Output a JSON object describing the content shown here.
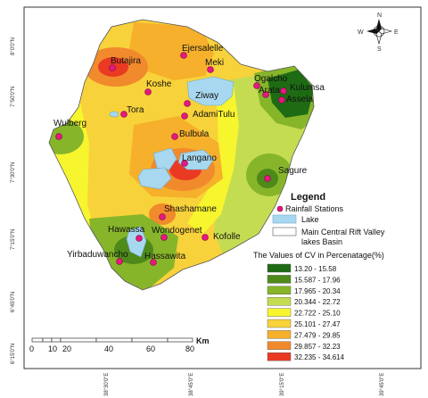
{
  "compass": {
    "n": "N",
    "s": "S",
    "e": "E",
    "w": "W"
  },
  "lat_labels": [
    "8°0'0\"N",
    "7°50'0\"N",
    "7°30'0\"N",
    "7°15'0\"N",
    "6°45'0\"N",
    "6°15'0\"N"
  ],
  "lon_labels": [
    "38°30'0\"E",
    "38°45'0\"E",
    "39°15'0\"E",
    "39°45'0\"E"
  ],
  "stations": [
    "Ejersalelle",
    "Meki",
    "Butajira",
    "Koshe",
    "Ziway",
    "Ogalcho",
    "Arata",
    "Kulumsa",
    "Assela",
    "Tora",
    "AdamiTulu",
    "Wulberg",
    "Bulbula",
    "Langano",
    "Sagure",
    "Shashamane",
    "Wondogenet",
    "Kofolle",
    "Hawassa",
    "Yirbaduwancho",
    "Hassawita"
  ],
  "legend": {
    "title": "Legend",
    "stations_label": "Rainfall Stations",
    "lakes_label": "Lake",
    "boundary_label": "Main Central Rift Valley",
    "boundary_label2": "lakes Basin",
    "cv_title": "The Values of CV in Percenatage(%)",
    "classes": [
      {
        "range": "13.20 - 15.58",
        "color": "#1e6b14"
      },
      {
        "range": "15.587 - 17.96",
        "color": "#4e8a1a"
      },
      {
        "range": "17.965 - 20.34",
        "color": "#86b52a"
      },
      {
        "range": "20.344 - 22.72",
        "color": "#c4dc52"
      },
      {
        "range": "22.722 - 25.10",
        "color": "#f7f52e"
      },
      {
        "range": "25.101 - 27.47",
        "color": "#f8d23a"
      },
      {
        "range": "27.479 - 29.85",
        "color": "#f6b02c"
      },
      {
        "range": "29.857 - 32.23",
        "color": "#f18a2c"
      },
      {
        "range": "32.235 - 34.614",
        "color": "#ea3a22"
      }
    ]
  },
  "scalebar": {
    "ticks": [
      "0",
      "10",
      "20",
      "40",
      "60",
      "80"
    ],
    "unit": "Km"
  },
  "colors": {
    "lake": "#a8d8f0",
    "station": "#e6177f",
    "basin_outline": "#555555"
  }
}
